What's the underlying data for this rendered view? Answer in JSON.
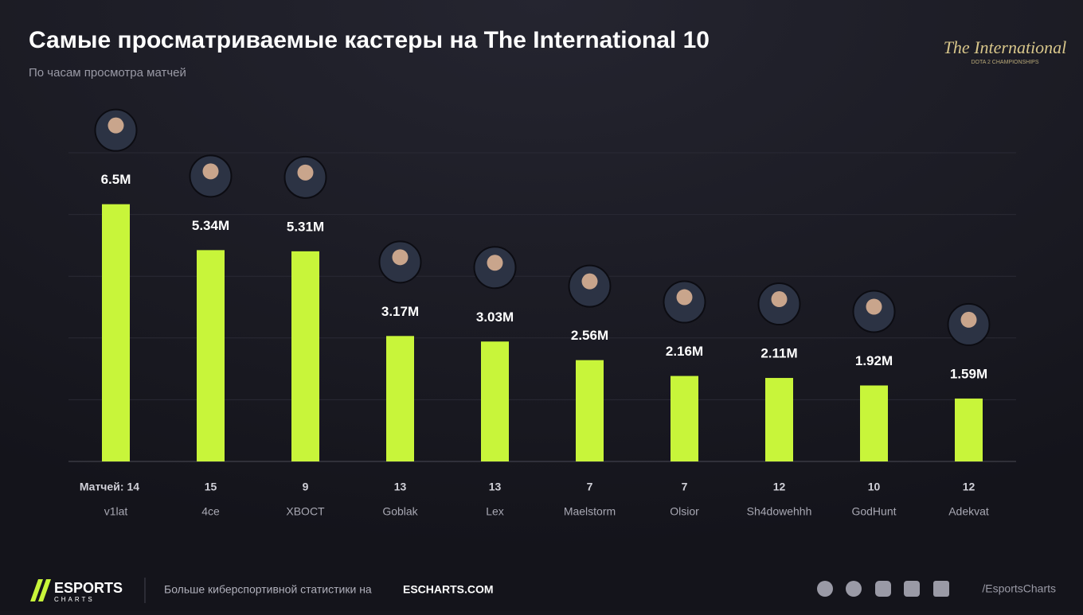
{
  "chart_data": {
    "type": "bar",
    "title": "Самые просматриваемые кастеры на The International 10",
    "subtitle": "По часам просмотра матчей",
    "categories": [
      "v1lat",
      "4ce",
      "XBOCT",
      "Goblak",
      "Lex",
      "Maelstorm",
      "Olsior",
      "Sh4dowehhh",
      "GodHunt",
      "Adekvat"
    ],
    "values": [
      6.5,
      5.34,
      5.31,
      3.17,
      3.03,
      2.56,
      2.16,
      2.11,
      1.92,
      1.59
    ],
    "value_labels": [
      "6.5M",
      "5.34M",
      "5.31M",
      "3.17M",
      "3.03M",
      "2.56M",
      "2.16M",
      "2.11M",
      "1.92M",
      "1.59M"
    ],
    "matches_label": "Матчей:",
    "matches": [
      14,
      15,
      9,
      13,
      13,
      7,
      7,
      12,
      10,
      12
    ],
    "color": "#c8f53a",
    "ylim": [
      0,
      7.8
    ],
    "grid": true,
    "logo": {
      "title": "The International",
      "subtitle": "DOTA 2 CHAMPIONSHIPS"
    },
    "footer": {
      "brand": "ESPORTS",
      "brand_sub": "CHARTS",
      "text": "Больше киберспортивной статистики на",
      "site": "ESCHARTS.COM",
      "handle": "/EsportsCharts"
    }
  }
}
